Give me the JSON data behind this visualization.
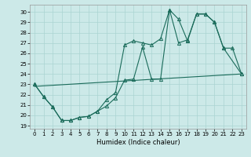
{
  "xlabel": "Humidex (Indice chaleur)",
  "xlim": [
    -0.5,
    23.5
  ],
  "ylim": [
    18.7,
    30.7
  ],
  "yticks": [
    19,
    20,
    21,
    22,
    23,
    24,
    25,
    26,
    27,
    28,
    29,
    30
  ],
  "xticks": [
    0,
    1,
    2,
    3,
    4,
    5,
    6,
    7,
    8,
    9,
    10,
    11,
    12,
    13,
    14,
    15,
    16,
    17,
    18,
    19,
    20,
    21,
    22,
    23
  ],
  "bg_color": "#cce9e8",
  "grid_color": "#aad4d2",
  "line_color": "#1a6b5a",
  "line1_x": [
    0,
    1,
    2,
    3,
    4,
    5,
    6,
    7,
    8,
    9,
    10,
    11,
    12,
    13,
    14,
    15,
    16,
    17,
    18,
    19,
    20,
    21,
    22,
    23
  ],
  "line1_y": [
    23.0,
    21.8,
    20.8,
    19.5,
    19.5,
    19.8,
    19.9,
    20.4,
    20.9,
    21.7,
    23.4,
    23.5,
    26.6,
    23.5,
    23.5,
    30.2,
    29.3,
    27.2,
    29.8,
    29.8,
    29.0,
    26.5,
    26.5,
    24.0
  ],
  "line2_x": [
    0,
    1,
    2,
    3,
    4,
    5,
    6,
    7,
    8,
    9,
    10,
    11,
    12,
    13,
    14,
    15,
    16,
    17,
    18,
    19,
    20,
    21,
    23
  ],
  "line2_y": [
    23.0,
    21.8,
    20.8,
    19.5,
    19.5,
    19.8,
    19.9,
    20.4,
    21.5,
    22.2,
    26.8,
    27.2,
    27.0,
    26.8,
    27.4,
    30.2,
    27.0,
    27.3,
    29.8,
    29.8,
    29.0,
    26.5,
    24.0
  ],
  "line3_x": [
    0,
    23
  ],
  "line3_y": [
    22.8,
    24.0
  ]
}
